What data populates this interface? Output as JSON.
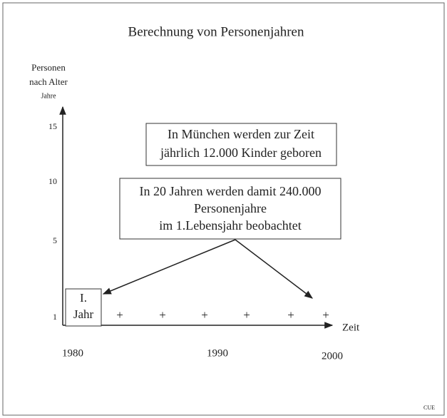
{
  "title": "Berechnung von Personenjahren",
  "y_axis": {
    "label": [
      "Personen",
      "nach Alter",
      "Jahre"
    ],
    "ticks": [
      "15",
      "10",
      "5",
      "1"
    ]
  },
  "x_axis": {
    "label": "Zeit",
    "ticks": [
      "1980",
      "1990",
      "2000"
    ]
  },
  "box_birth": {
    "lines": [
      "In München werden zur Zeit",
      "jährlich 12.000 Kinder geboren"
    ]
  },
  "box_years": {
    "lines": [
      "In 20 Jahren werden damit 240.000",
      "Personenjahre",
      "im 1.Lebensjahr beobachtet"
    ]
  },
  "first_year_box": {
    "lines": [
      "I.",
      "Jahr"
    ]
  },
  "footer": "CUE"
}
